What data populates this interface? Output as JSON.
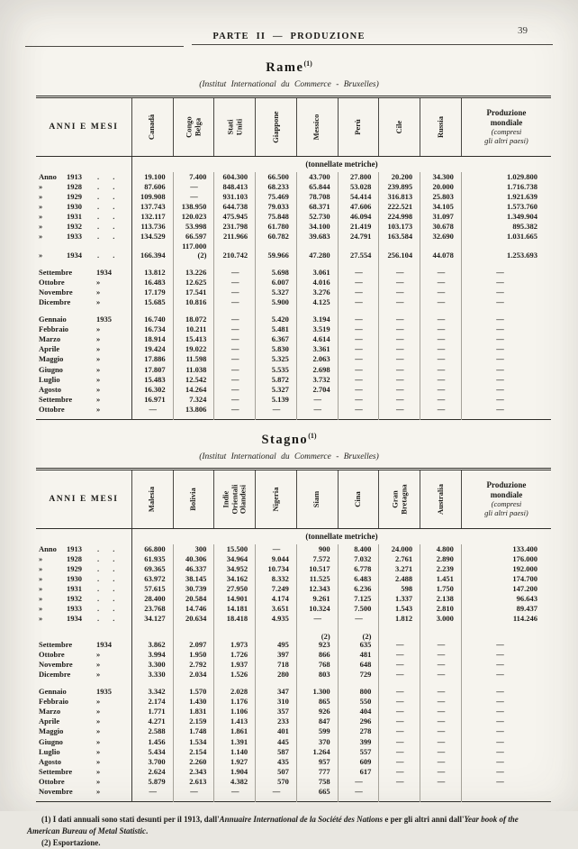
{
  "page": {
    "header": "PARTE II — PRODUZIONE",
    "page_number": "39"
  },
  "tables": [
    {
      "title": "Rame",
      "footnote_ref": "(1)",
      "subtitle": "(Institut International du Commerce - Bruxelles)",
      "corner_header": "ANNI E MESI",
      "countries": [
        "Canadà",
        "Congo\nBelga",
        "Stati\nUniti",
        "Giappone",
        "Messico",
        "Perù",
        "Cile",
        "Russia"
      ],
      "last_col": {
        "title": "Produzione\nmondiale",
        "sub": "(compresi\ngli altri paesi)"
      },
      "unit": "(tonnellate metriche)",
      "groups": [
        {
          "rows": [
            {
              "n": "Anno",
              "y": "1913",
              "d": true,
              "v": [
                "19.100",
                "7.400",
                "604.300",
                "66.500",
                "43.700",
                "27.800",
                "20.200",
                "34.300",
                "1.029.800"
              ]
            },
            {
              "n": "»",
              "y": "1928",
              "d": true,
              "v": [
                "87.606",
                "—",
                "848.413",
                "68.233",
                "65.844",
                "53.028",
                "239.895",
                "20.000",
                "1.716.738"
              ]
            },
            {
              "n": "»",
              "y": "1929",
              "d": true,
              "v": [
                "109.908",
                "—",
                "931.103",
                "75.469",
                "78.708",
                "54.414",
                "316.813",
                "25.803",
                "1.921.639"
              ]
            },
            {
              "n": "»",
              "y": "1930",
              "d": true,
              "v": [
                "137.743",
                "138.950",
                "644.738",
                "79.033",
                "68.371",
                "47.606",
                "222.521",
                "34.105",
                "1.573.760"
              ]
            },
            {
              "n": "»",
              "y": "1931",
              "d": true,
              "v": [
                "132.117",
                "120.023",
                "475.945",
                "75.848",
                "52.730",
                "46.094",
                "224.998",
                "31.097",
                "1.349.904"
              ]
            },
            {
              "n": "»",
              "y": "1932",
              "d": true,
              "v": [
                "113.736",
                "53.998",
                "231.798",
                "61.780",
                "34.100",
                "21.419",
                "103.173",
                "30.678",
                "895.382"
              ]
            },
            {
              "n": "»",
              "y": "1933",
              "d": true,
              "v": [
                "134.529",
                "66.597",
                "211.966",
                "60.782",
                "39.683",
                "24.791",
                "163.584",
                "32.690",
                "1.031.665"
              ]
            },
            {
              "n": "»",
              "y": "1934",
              "d": true,
              "v": [
                "166.394",
                "117.000\n(2)",
                "210.742",
                "59.966",
                "47.280",
                "27.554",
                "256.104",
                "44.078",
                "1.253.693"
              ]
            }
          ]
        },
        {
          "rows": [
            {
              "n": "Settembre",
              "y": "1934",
              "v": [
                "13.812",
                "13.226",
                "—",
                "5.698",
                "3.061",
                "—",
                "—",
                "—",
                "—"
              ]
            },
            {
              "n": "Ottobre",
              "y": "»",
              "v": [
                "16.483",
                "12.625",
                "—",
                "6.007",
                "4.016",
                "—",
                "—",
                "—",
                "—"
              ]
            },
            {
              "n": "Novembre",
              "y": "»",
              "v": [
                "17.179",
                "17.541",
                "—",
                "5.327",
                "3.276",
                "—",
                "—",
                "—",
                "—"
              ]
            },
            {
              "n": "Dicembre",
              "y": "»",
              "v": [
                "15.685",
                "10.816",
                "—",
                "5.900",
                "4.125",
                "—",
                "—",
                "—",
                "—"
              ]
            }
          ]
        },
        {
          "rows": [
            {
              "n": "Gennaio",
              "y": "1935",
              "v": [
                "16.740",
                "18.072",
                "—",
                "5.420",
                "3.194",
                "—",
                "—",
                "—",
                "—"
              ]
            },
            {
              "n": "Febbraio",
              "y": "»",
              "v": [
                "16.734",
                "10.211",
                "—",
                "5.481",
                "3.519",
                "—",
                "—",
                "—",
                "—"
              ]
            },
            {
              "n": "Marzo",
              "y": "»",
              "v": [
                "18.914",
                "15.413",
                "—",
                "6.367",
                "4.614",
                "—",
                "—",
                "—",
                "—"
              ]
            },
            {
              "n": "Aprile",
              "y": "»",
              "v": [
                "19.424",
                "19.022",
                "—",
                "5.830",
                "3.361",
                "—",
                "—",
                "—",
                "—"
              ]
            },
            {
              "n": "Maggio",
              "y": "»",
              "v": [
                "17.886",
                "11.598",
                "—",
                "5.325",
                "2.063",
                "—",
                "—",
                "—",
                "—"
              ]
            },
            {
              "n": "Giugno",
              "y": "»",
              "v": [
                "17.807",
                "11.038",
                "—",
                "5.535",
                "2.698",
                "—",
                "—",
                "—",
                "—"
              ]
            },
            {
              "n": "Luglio",
              "y": "»",
              "v": [
                "15.483",
                "12.542",
                "—",
                "5.872",
                "3.732",
                "—",
                "—",
                "—",
                "—"
              ]
            },
            {
              "n": "Agosto",
              "y": "»",
              "v": [
                "16.302",
                "14.264",
                "—",
                "5.327",
                "2.704",
                "—",
                "—",
                "—",
                "—"
              ]
            },
            {
              "n": "Settembre",
              "y": "»",
              "v": [
                "16.971",
                "7.324",
                "—",
                "5.139",
                "—",
                "—",
                "—",
                "—",
                "—"
              ]
            },
            {
              "n": "Ottobre",
              "y": "»",
              "v": [
                "—",
                "13.806",
                "—",
                "—",
                "—",
                "—",
                "—",
                "—",
                "—"
              ]
            }
          ]
        }
      ]
    },
    {
      "title": "Stagno",
      "footnote_ref": "(1)",
      "subtitle": "(Institut International du Commerce - Bruxelles)",
      "corner_header": "ANNI E MESI",
      "countries": [
        "Malesia",
        "Bolivia",
        "Indie\nOrientali\nOlandesi",
        "Nigeria",
        "Siam",
        "Cina",
        "Gran\nBretagna",
        "Australia"
      ],
      "last_col": {
        "title": "Produzione\nmondiale",
        "sub": "(compresi\ngli altri paesi)"
      },
      "unit": "(tonnellate metriche)",
      "groups": [
        {
          "rows": [
            {
              "n": "Anno",
              "y": "1913",
              "d": true,
              "v": [
                "66.800",
                "300",
                "15.500",
                "—",
                "900",
                "8.400",
                "24.000",
                "4.800",
                "133.400"
              ]
            },
            {
              "n": "»",
              "y": "1928",
              "d": true,
              "v": [
                "61.935",
                "40.306",
                "34.964",
                "9.044",
                "7.572",
                "7.032",
                "2.761",
                "2.890",
                "176.000"
              ]
            },
            {
              "n": "»",
              "y": "1929",
              "d": true,
              "v": [
                "69.365",
                "46.337",
                "34.952",
                "10.734",
                "10.517",
                "6.778",
                "3.271",
                "2.239",
                "192.000"
              ]
            },
            {
              "n": "»",
              "y": "1930",
              "d": true,
              "v": [
                "63.972",
                "38.145",
                "34.162",
                "8.332",
                "11.525",
                "6.483",
                "2.488",
                "1.451",
                "174.700"
              ]
            },
            {
              "n": "»",
              "y": "1931",
              "d": true,
              "v": [
                "57.615",
                "30.739",
                "27.950",
                "7.249",
                "12.343",
                "6.236",
                "598",
                "1.750",
                "147.200"
              ]
            },
            {
              "n": "»",
              "y": "1932",
              "d": true,
              "v": [
                "28.400",
                "20.584",
                "14.901",
                "4.174",
                "9.261",
                "7.125",
                "1.337",
                "2.138",
                "96.643"
              ]
            },
            {
              "n": "»",
              "y": "1933",
              "d": true,
              "v": [
                "23.768",
                "14.746",
                "14.181",
                "3.651",
                "10.324",
                "7.500",
                "1.543",
                "2.810",
                "89.437"
              ]
            },
            {
              "n": "»",
              "y": "1934",
              "d": true,
              "v": [
                "34.127",
                "20.634",
                "18.418",
                "4.935",
                "—",
                "—",
                "1.812",
                "3.000",
                "114.246"
              ]
            }
          ]
        },
        {
          "rows": [
            {
              "n": "Settembre",
              "y": "1934",
              "v": [
                "3.862",
                "2.097",
                "1.973",
                "495",
                "(2)\n923",
                "(2)\n635",
                "—",
                "—",
                "—"
              ]
            },
            {
              "n": "Ottobre",
              "y": "»",
              "v": [
                "3.994",
                "1.950",
                "1.726",
                "397",
                "866",
                "481",
                "—",
                "—",
                "—"
              ]
            },
            {
              "n": "Novembre",
              "y": "»",
              "v": [
                "3.300",
                "2.792",
                "1.937",
                "718",
                "768",
                "648",
                "—",
                "—",
                "—"
              ]
            },
            {
              "n": "Dicembre",
              "y": "»",
              "v": [
                "3.330",
                "2.034",
                "1.526",
                "280",
                "803",
                "729",
                "—",
                "—",
                "—"
              ]
            }
          ]
        },
        {
          "rows": [
            {
              "n": "Gennaio",
              "y": "1935",
              "v": [
                "3.342",
                "1.570",
                "2.028",
                "347",
                "1.300",
                "800",
                "—",
                "—",
                "—"
              ]
            },
            {
              "n": "Febbraio",
              "y": "»",
              "v": [
                "2.174",
                "1.430",
                "1.176",
                "310",
                "865",
                "550",
                "—",
                "—",
                "—"
              ]
            },
            {
              "n": "Marzo",
              "y": "»",
              "v": [
                "1.771",
                "1.831",
                "1.106",
                "357",
                "926",
                "404",
                "—",
                "—",
                "—"
              ]
            },
            {
              "n": "Aprile",
              "y": "»",
              "v": [
                "4.271",
                "2.159",
                "1.413",
                "233",
                "847",
                "296",
                "—",
                "—",
                "—"
              ]
            },
            {
              "n": "Maggio",
              "y": "»",
              "v": [
                "2.588",
                "1.748",
                "1.861",
                "401",
                "599",
                "278",
                "—",
                "—",
                "—"
              ]
            },
            {
              "n": "Giugno",
              "y": "»",
              "v": [
                "1.456",
                "1.534",
                "1.391",
                "445",
                "370",
                "399",
                "—",
                "—",
                "—"
              ]
            },
            {
              "n": "Luglio",
              "y": "»",
              "v": [
                "5.434",
                "2.154",
                "1.140",
                "587",
                "1.264",
                "557",
                "—",
                "—",
                "—"
              ]
            },
            {
              "n": "Agosto",
              "y": "»",
              "v": [
                "3.700",
                "2.260",
                "1.927",
                "435",
                "957",
                "609",
                "—",
                "—",
                "—"
              ]
            },
            {
              "n": "Settembre",
              "y": "»",
              "v": [
                "2.624",
                "2.343",
                "1.904",
                "507",
                "777",
                "617",
                "—",
                "—",
                "—"
              ]
            },
            {
              "n": "Ottobre",
              "y": "»",
              "v": [
                "5.879",
                "2.613",
                "4.382",
                "570",
                "758",
                "—",
                "—",
                "—",
                "—"
              ]
            },
            {
              "n": "Novembre",
              "y": "»",
              "v": [
                "—",
                "—",
                "—",
                "—",
                "665",
                "—",
                "",
                "",
                ""
              ]
            }
          ]
        }
      ]
    }
  ],
  "footnotes": {
    "fn1": {
      "p0": "(1) I dati annuali sono stati desunti per il 1913, dall'",
      "i1": "Annuaire International de la Société des Nations",
      "p2": " e per gli altri anni dall'",
      "i3": "Year book of the American Bureau of Metal Statistic",
      "p4": "."
    },
    "fn2": "(2) Esportazione."
  }
}
